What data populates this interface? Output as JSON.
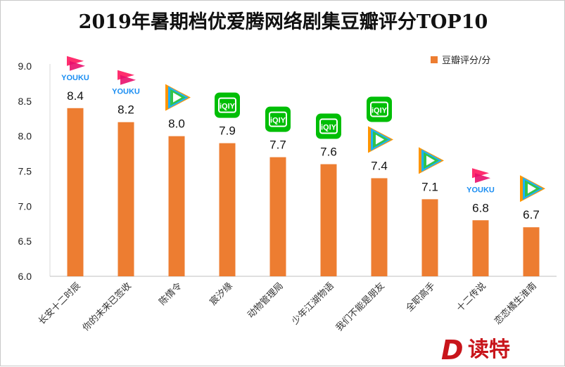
{
  "chart_data": {
    "type": "bar",
    "title": "2019年暑期档优爱腾网络剧集豆瓣评分TOP10",
    "categories": [
      "长安十二时辰",
      "你的未来已签收",
      "陈情令",
      "宸汐缘",
      "动物管理局",
      "少年江湖物语",
      "我们不能是朋友",
      "全职高手",
      "十二传说",
      "恋恋橘生淮南"
    ],
    "series": [
      {
        "name": "豆瓣评分/分",
        "values": [
          8.4,
          8.2,
          8.0,
          7.9,
          7.7,
          7.6,
          7.4,
          7.1,
          6.8,
          6.7
        ],
        "color": "#ED7D31"
      }
    ],
    "data_labels": [
      "8.4",
      "8.2",
      "8.0",
      "7.9",
      "7.7",
      "7.6",
      "7.4",
      "7.1",
      "6.8",
      "6.7"
    ],
    "platforms": [
      [
        "youku"
      ],
      [
        "youku"
      ],
      [
        "tencent"
      ],
      [
        "iqiyi"
      ],
      [
        "iqiyi"
      ],
      [
        "iqiyi"
      ],
      [
        "iqiyi",
        "tencent"
      ],
      [
        "tencent"
      ],
      [
        "youku"
      ],
      [
        "tencent"
      ]
    ],
    "yticks": [
      "6.0",
      "6.5",
      "7.0",
      "7.5",
      "8.0",
      "8.5",
      "9.0"
    ],
    "ylim": [
      6.0,
      9.0
    ],
    "legend_position": "top-right",
    "grid": false
  },
  "logo_texts": {
    "youku": "YOUKU",
    "iqiyi": "iQIY"
  },
  "watermark": {
    "mark": "D",
    "text": "读特"
  }
}
